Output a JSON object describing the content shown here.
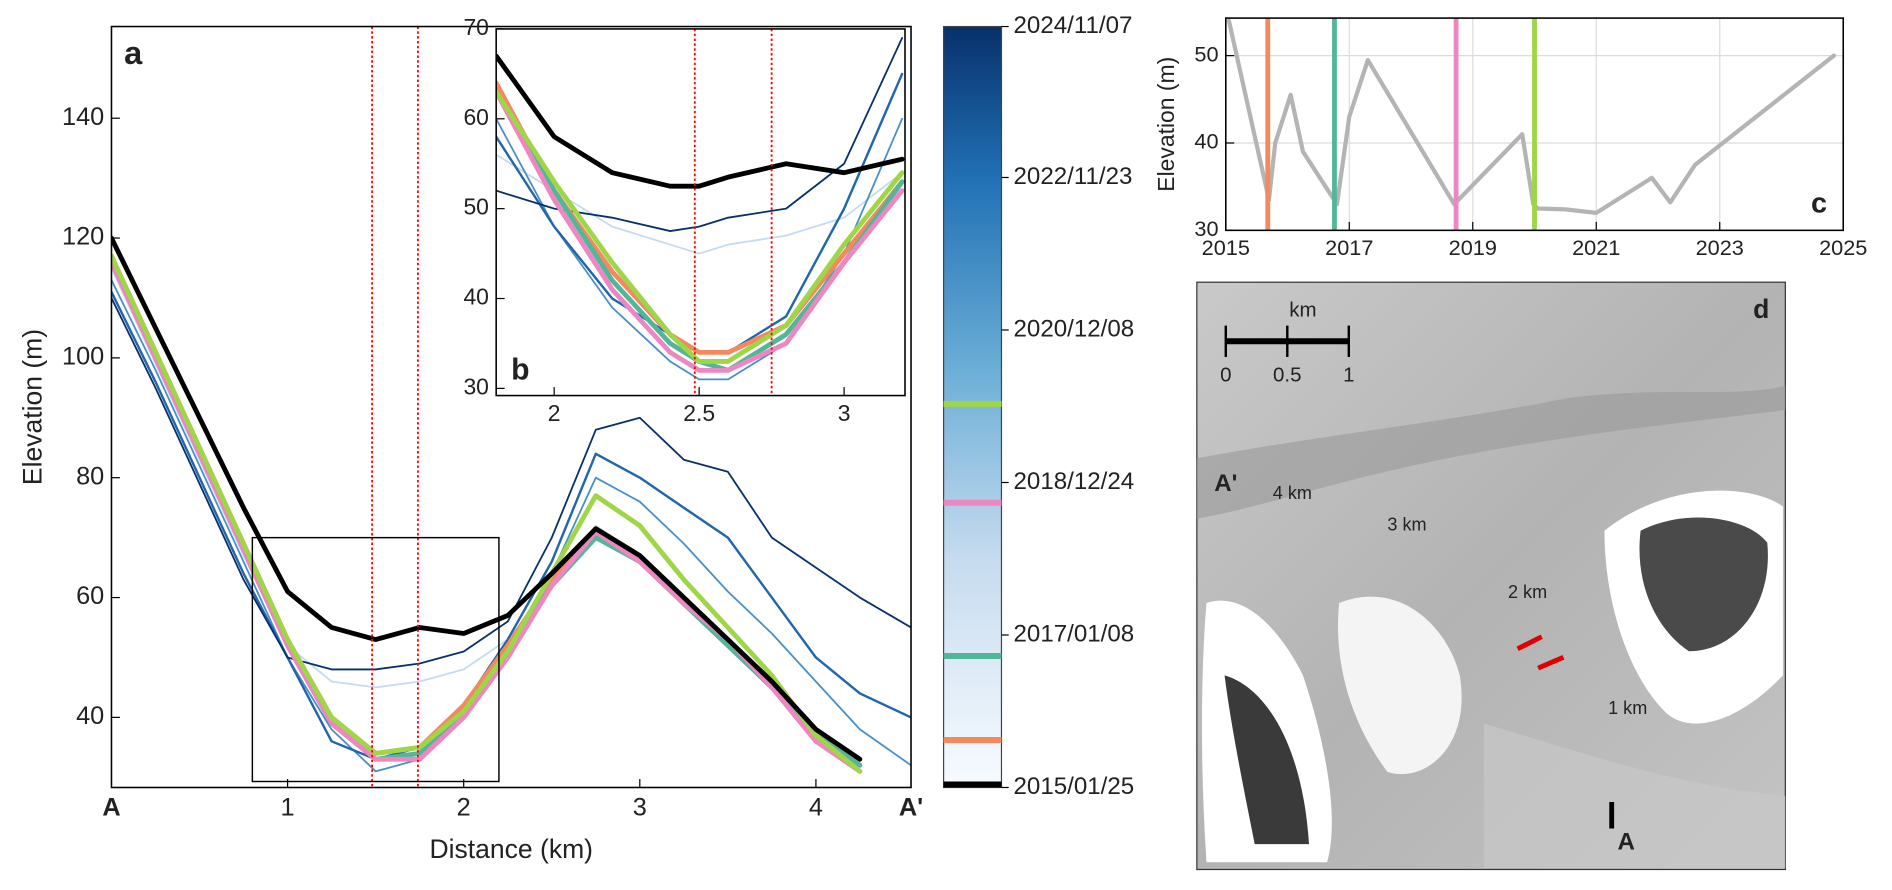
{
  "chart_data": [
    {
      "type": "line",
      "panel_label": "a",
      "xlabel": "Distance (km)",
      "ylabel": "Elevation (m)",
      "xlim": [
        0,
        4.54
      ],
      "ylim": [
        28.3,
        155.3
      ],
      "xticks": [
        1,
        2,
        3,
        4
      ],
      "yticks": [
        40,
        60,
        80,
        100,
        120,
        140
      ],
      "grid": false,
      "annotations": [
        {
          "text": "A",
          "x": 0
        },
        {
          "text": "A'",
          "x": 4.54
        }
      ],
      "zoom_box": {
        "xlim": [
          0.8,
          2.2
        ],
        "ylim": [
          29.3,
          70
        ]
      },
      "vlines": [
        {
          "x": 1.48,
          "color": "#ff0000",
          "linestyle": "dotted"
        },
        {
          "x": 1.74,
          "color": "#ff0000",
          "linestyle": "dotted"
        }
      ],
      "x": [
        0,
        0.25,
        0.5,
        0.75,
        1,
        1.25,
        1.5,
        1.75,
        2,
        2.25,
        2.5,
        2.75,
        3,
        3.25,
        3.5,
        3.75,
        4,
        4.25,
        4.54
      ],
      "series": [
        {
          "color": "#c6dbef",
          "width": 1.5,
          "values": [
            115,
            99,
            83,
            67,
            52,
            46,
            45,
            46,
            48,
            53,
            62,
            72,
            67,
            60,
            53,
            46,
            38,
            33,
            null
          ]
        },
        {
          "color": "#4a90c8",
          "width": 1.5,
          "values": [
            113,
            98,
            82,
            66,
            50,
            38,
            31,
            33,
            40,
            51,
            64,
            80,
            76,
            69,
            61,
            54,
            46,
            38,
            32
          ]
        },
        {
          "color": "#2166ac",
          "width": 2,
          "values": [
            111,
            96,
            80,
            64,
            50,
            36,
            33,
            35,
            42,
            53,
            66,
            84,
            80,
            75,
            70,
            60,
            50,
            44,
            40
          ]
        },
        {
          "color": "#08306b",
          "width": 1.5,
          "values": [
            110,
            95,
            79,
            63,
            50,
            48,
            48,
            49,
            51,
            56,
            70,
            88,
            90,
            83,
            81,
            70,
            65,
            60,
            55
          ]
        },
        {
          "color": "#f4895f",
          "width": 4,
          "values": [
            117,
            101,
            85,
            69,
            53,
            40,
            34,
            35,
            42,
            52,
            63,
            71,
            66,
            59,
            52,
            45,
            37,
            32,
            null
          ]
        },
        {
          "color": "#52b79a",
          "width": 4,
          "values": [
            116,
            100,
            84,
            68,
            52,
            39,
            33,
            34,
            41,
            51,
            62,
            70,
            66,
            59,
            52,
            45,
            37,
            32,
            null
          ]
        },
        {
          "color": "#ee86c2",
          "width": 4,
          "values": [
            116,
            100,
            84,
            68,
            52,
            39,
            33,
            33,
            40,
            50,
            62,
            71,
            66,
            59,
            53,
            45,
            36,
            31,
            null
          ]
        },
        {
          "color": "#9fd648",
          "width": 4,
          "values": [
            117,
            101,
            85,
            69,
            53,
            40,
            34,
            35,
            41,
            51,
            64,
            77,
            72,
            63,
            55,
            47,
            37,
            31,
            null
          ]
        },
        {
          "color": "#000000",
          "width": 4,
          "values": [
            120,
            105,
            90,
            75,
            61,
            55,
            53,
            55,
            54,
            57,
            64,
            71.5,
            67,
            60,
            53,
            46,
            38,
            33,
            null
          ]
        }
      ]
    },
    {
      "type": "line",
      "panel_label": "b",
      "xlim": [
        1.8,
        3.21
      ],
      "ylim": [
        29.2,
        70
      ],
      "xticks": [
        2,
        2.5,
        3
      ],
      "yticks": [
        30,
        40,
        50,
        60,
        70
      ],
      "grid": false,
      "vlines": [
        {
          "x": 2.485,
          "color": "#ff0000",
          "linestyle": "dotted"
        },
        {
          "x": 2.75,
          "color": "#ff0000",
          "linestyle": "dotted"
        }
      ],
      "x": [
        1.8,
        2.0,
        2.2,
        2.4,
        2.5,
        2.6,
        2.8,
        3.0,
        3.2
      ],
      "series": [
        {
          "color": "#c6dbef",
          "width": 1.5,
          "values": [
            56,
            52,
            48,
            46,
            45,
            46,
            47,
            49,
            54
          ]
        },
        {
          "color": "#4a90c8",
          "width": 1.5,
          "values": [
            60,
            48,
            39,
            33,
            31,
            31,
            35,
            45,
            60
          ]
        },
        {
          "color": "#2166ac",
          "width": 2,
          "values": [
            58,
            48,
            40,
            36,
            34,
            34,
            38,
            50,
            65
          ]
        },
        {
          "color": "#08306b",
          "width": 1.5,
          "values": [
            52,
            50,
            49,
            47.5,
            48,
            49,
            50,
            55,
            69
          ]
        },
        {
          "color": "#f4895f",
          "width": 4,
          "values": [
            64,
            52,
            43,
            36,
            34,
            34,
            37,
            45,
            53
          ]
        },
        {
          "color": "#52b79a",
          "width": 4,
          "values": [
            63,
            52,
            42,
            35,
            33,
            32,
            36,
            44,
            53
          ]
        },
        {
          "color": "#ee86c2",
          "width": 4,
          "values": [
            63,
            51,
            41,
            34,
            32,
            32,
            35,
            44,
            52
          ]
        },
        {
          "color": "#9fd648",
          "width": 4,
          "values": [
            63,
            53,
            44,
            36,
            33,
            33,
            37,
            46,
            54
          ]
        },
        {
          "color": "#000000",
          "width": 4,
          "values": [
            67,
            58,
            54,
            52.5,
            52.5,
            53.5,
            55,
            54,
            55.5
          ]
        }
      ]
    },
    {
      "type": "colorbar",
      "ylim": [
        2015.07,
        2024.85
      ],
      "yticks": [
        {
          "value": 2015.07,
          "label": "2015/01/25"
        },
        {
          "value": 2017.03,
          "label": "2017/01/08"
        },
        {
          "value": 2018.99,
          "label": "2018/12/24"
        },
        {
          "value": 2020.95,
          "label": "2020/12/08"
        },
        {
          "value": 2022.91,
          "label": "2022/11/23"
        },
        {
          "value": 2024.85,
          "label": "2024/11/07"
        }
      ],
      "markers": [
        {
          "value": 2015.07,
          "color": "#000000"
        },
        {
          "value": 2015.68,
          "color": "#f4895f"
        },
        {
          "value": 2016.76,
          "color": "#52b79a"
        },
        {
          "value": 2018.73,
          "color": "#ee86c2"
        },
        {
          "value": 2020.0,
          "color": "#9fd648"
        }
      ]
    },
    {
      "type": "line",
      "panel_label": "c",
      "ylabel": "Elevation (m)",
      "xlim": [
        2015,
        2025
      ],
      "ylim": [
        30,
        54.3
      ],
      "xticks": [
        2015,
        2017,
        2019,
        2021,
        2023,
        2025
      ],
      "yticks": [
        30,
        40,
        50
      ],
      "grid": true,
      "vlines": [
        {
          "x": 2015.68,
          "color": "#f4895f",
          "linestyle": "solid"
        },
        {
          "x": 2016.76,
          "color": "#52b79a",
          "linestyle": "solid"
        },
        {
          "x": 2018.73,
          "color": "#ee86c2",
          "linestyle": "solid"
        },
        {
          "x": 2020.0,
          "color": "#9fd648",
          "linestyle": "solid"
        }
      ],
      "x": [
        2015.05,
        2015.7,
        2015.8,
        2016.05,
        2016.25,
        2016.8,
        2017.0,
        2017.3,
        2018.7,
        2019.8,
        2019.98,
        2020.05,
        2020.5,
        2021.0,
        2021.9,
        2022.2,
        2022.6,
        2024.85
      ],
      "series": [
        {
          "color": "#b4b4b4",
          "width": 3.5,
          "values": [
            54,
            33.5,
            40,
            45.5,
            39,
            33,
            43,
            49.5,
            33,
            41,
            33,
            32.5,
            32.4,
            32,
            36,
            33.2,
            37.5,
            50
          ]
        }
      ]
    }
  ],
  "map": {
    "panel_label": "d",
    "scale_unit": "km",
    "scale_ticks": [
      "0",
      "0.5",
      "1"
    ],
    "start": "A",
    "end": "A'",
    "distance_labels": [
      "1 km",
      "2 km",
      "3 km",
      "4 km"
    ]
  }
}
